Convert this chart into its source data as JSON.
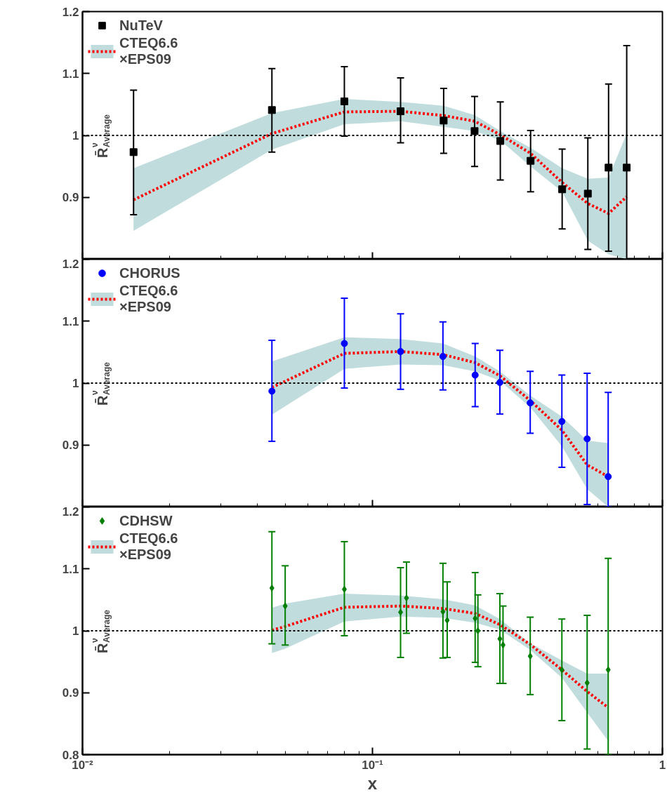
{
  "chart_data": [
    {
      "type": "scatter",
      "ylabel": "R̄$^{ν}$$_{Average}$",
      "log": "x",
      "xlim": [
        0.01,
        1
      ],
      "ylim": [
        0.8,
        1.2
      ],
      "xticks": [
        {
          "value": 0.01,
          "label": null
        },
        {
          "value": 0.1,
          "label": null
        },
        {
          "value": 1,
          "label": null
        }
      ],
      "yticks": [
        {
          "value": 0.8,
          "label": null
        },
        0.9,
        1,
        1.1,
        1.2
      ],
      "tick_labels": "y",
      "grid": false,
      "legend": "top left",
      "ref_lines": [
        {
          "axis": "y",
          "value": 1,
          "color": "#000000",
          "line_style": "dotted"
        }
      ],
      "series": [
        {
          "name": "NuTeV",
          "type": "scatter",
          "marker": "square",
          "color": "#000000",
          "x": [
            0.015,
            0.045,
            0.08,
            0.125,
            0.176,
            0.225,
            0.276,
            0.351,
            0.451,
            0.553,
            0.652,
            0.753
          ],
          "values": [
            0.973,
            1.041,
            1.055,
            1.039,
            1.024,
            1.007,
            0.991,
            0.959,
            0.913,
            0.906,
            0.948,
            0.948
          ],
          "errors": [
            [
              0.872,
              1.073
            ],
            [
              0.973,
              1.108
            ],
            [
              0.999,
              1.111
            ],
            [
              0.988,
              1.093
            ],
            [
              0.971,
              1.076
            ],
            [
              0.95,
              1.063
            ],
            [
              0.928,
              1.054
            ],
            [
              0.909,
              1.008
            ],
            [
              0.849,
              0.978
            ],
            [
              0.816,
              0.996
            ],
            [
              0.813,
              1.083
            ],
            [
              0.8,
              1.145
            ]
          ]
        },
        {
          "name": "CTEQ6.6\n×EPS09",
          "type": "line",
          "line_style": "dotted",
          "color": "#ff0000",
          "x": [
            0.015,
            0.045,
            0.08,
            0.125,
            0.176,
            0.225,
            0.276,
            0.351,
            0.451,
            0.553,
            0.652,
            0.753
          ],
          "values": [
            0.896,
            1.003,
            1.038,
            1.039,
            1.032,
            1.023,
            1.001,
            0.971,
            0.924,
            0.89,
            0.874,
            0.901
          ],
          "lower": [
            0.846,
            0.977,
            1.018,
            1.023,
            1.014,
            1.007,
            0.992,
            0.95,
            0.909,
            0.83,
            0.808,
            0.8
          ],
          "upper": [
            0.947,
            1.036,
            1.059,
            1.054,
            1.048,
            1.033,
            1.007,
            0.98,
            0.947,
            0.93,
            0.932,
            1.003
          ]
        }
      ]
    },
    {
      "type": "scatter",
      "ylabel": "R̄$^{ν}$$_{Average}$",
      "log": "x",
      "xlim": [
        0.01,
        1
      ],
      "ylim": [
        0.8,
        1.2
      ],
      "xticks": [
        {
          "value": 0.01,
          "label": null
        },
        {
          "value": 0.1,
          "label": null
        },
        {
          "value": 1,
          "label": null
        }
      ],
      "yticks": [
        {
          "value": 0.8,
          "label": null
        },
        0.9,
        1,
        1.1,
        1.2
      ],
      "tick_labels": "y",
      "grid": false,
      "legend": "top left",
      "ref_lines": [
        {
          "axis": "y",
          "value": 1,
          "color": "#000000",
          "line_style": "dotted"
        }
      ],
      "series": [
        {
          "name": "CHORUS",
          "type": "scatter",
          "marker": "circle",
          "color": "#0000ff",
          "x": [
            0.045,
            0.08,
            0.125,
            0.175,
            0.226,
            0.275,
            0.35,
            0.45,
            0.55,
            0.65
          ],
          "values": [
            0.987,
            1.064,
            1.051,
            1.043,
            1.013,
            1.001,
            0.968,
            0.938,
            0.91,
            0.849
          ],
          "errors": [
            [
              0.906,
              1.069
            ],
            [
              0.992,
              1.137
            ],
            [
              0.99,
              1.112
            ],
            [
              0.989,
              1.099
            ],
            [
              0.962,
              1.064
            ],
            [
              0.95,
              1.053
            ],
            [
              0.919,
              1.019
            ],
            [
              0.864,
              1.013
            ],
            [
              0.804,
              1.016
            ],
            [
              0.8,
              0.985
            ]
          ]
        },
        {
          "name": "CTEQ6.6\n×EPS09",
          "type": "line",
          "line_style": "dotted",
          "color": "#ff0000",
          "x": [
            0.045,
            0.08,
            0.125,
            0.175,
            0.226,
            0.275,
            0.35,
            0.45,
            0.55,
            0.65
          ],
          "values": [
            0.993,
            1.048,
            1.051,
            1.046,
            1.033,
            1.012,
            0.972,
            0.924,
            0.868,
            0.849
          ],
          "lower": [
            0.949,
            1.023,
            1.03,
            1.029,
            1.019,
            1.004,
            0.961,
            0.898,
            0.829,
            0.8
          ],
          "upper": [
            1.035,
            1.074,
            1.071,
            1.064,
            1.043,
            1.019,
            0.98,
            0.946,
            0.907,
            0.903
          ]
        }
      ]
    },
    {
      "type": "scatter",
      "ylabel": "R̄$^{ν}$$_{Average}$",
      "xlabel": "x",
      "log": "x",
      "xlim": [
        0.01,
        1
      ],
      "ylim": [
        0.8,
        1.2
      ],
      "xticks": [
        {
          "value": 0.01,
          "label": "10⁻²"
        },
        {
          "value": 0.1,
          "label": "10⁻¹"
        },
        1
      ],
      "yticks": [
        0.8,
        0.9,
        1,
        1.1,
        1.2
      ],
      "grid": false,
      "legend": "top left",
      "ref_lines": [
        {
          "axis": "y",
          "value": 1,
          "color": "#000000",
          "line_style": "dotted"
        }
      ],
      "series": [
        {
          "name": "CDHSW",
          "type": "scatter",
          "marker": "diamond",
          "color": "#007f00",
          "x": [
            0.045,
            0.05,
            0.08,
            0.125,
            0.131,
            0.175,
            0.181,
            0.226,
            0.231,
            0.275,
            0.282,
            0.35,
            0.45,
            0.55,
            0.65
          ],
          "values": [
            1.069,
            1.04,
            1.067,
            1.03,
            1.053,
            1.031,
            1.017,
            1.02,
            1.0,
            0.987,
            0.977,
            0.959,
            0.937,
            0.916,
            0.937
          ],
          "errors": [
            [
              0.979,
              1.16
            ],
            [
              0.977,
              1.105
            ],
            [
              0.992,
              1.144
            ],
            [
              0.957,
              1.102
            ],
            [
              0.996,
              1.111
            ],
            [
              0.956,
              1.109
            ],
            [
              0.957,
              1.079
            ],
            [
              0.949,
              1.094
            ],
            [
              0.942,
              1.058
            ],
            [
              0.915,
              1.06
            ],
            [
              0.915,
              1.04
            ],
            [
              0.897,
              1.022
            ],
            [
              0.855,
              1.019
            ],
            [
              0.809,
              1.025
            ],
            [
              0.8,
              1.117
            ]
          ]
        },
        {
          "name": "CTEQ6.6\n×EPS09",
          "type": "line",
          "line_style": "dotted",
          "color": "#ff0000",
          "x": [
            0.045,
            0.05,
            0.08,
            0.125,
            0.175,
            0.226,
            0.275,
            0.35,
            0.45,
            0.55,
            0.65
          ],
          "values": [
            1.001,
            1.007,
            1.038,
            1.04,
            1.036,
            1.028,
            1.01,
            0.978,
            0.937,
            0.902,
            0.876
          ],
          "lower": [
            0.964,
            0.971,
            1.015,
            1.023,
            1.021,
            1.013,
            1.002,
            0.969,
            0.924,
            0.868,
            0.822
          ],
          "upper": [
            1.037,
            1.044,
            1.06,
            1.057,
            1.051,
            1.041,
            1.019,
            0.98,
            0.952,
            0.931,
            0.931
          ]
        }
      ]
    }
  ]
}
